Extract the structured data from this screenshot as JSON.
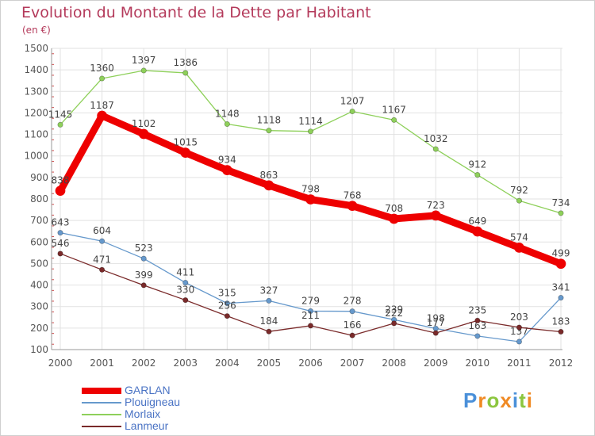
{
  "chart_data": {
    "type": "line",
    "title": "Evolution du Montant de la Dette par Habitant",
    "subtitle": "(en €)",
    "x": [
      "2000",
      "2001",
      "2002",
      "2003",
      "2004",
      "2005",
      "2006",
      "2007",
      "2008",
      "2009",
      "2010",
      "2011",
      "2012"
    ],
    "ylim": [
      100,
      1500
    ],
    "yticks": [
      100,
      200,
      300,
      400,
      500,
      600,
      700,
      800,
      900,
      1000,
      1100,
      1200,
      1300,
      1400,
      1500
    ],
    "grid": true,
    "legend_position": "bottom-left",
    "series": [
      {
        "name": "Morlaix",
        "color": "#8ed05a",
        "values": [
          1145,
          1360,
          1397,
          1386,
          1148,
          1118,
          1114,
          1207,
          1167,
          1032,
          912,
          792,
          734
        ]
      },
      {
        "name": "GARLAN",
        "color": "#ee0000",
        "values": [
          838,
          1187,
          1102,
          1015,
          934,
          863,
          798,
          768,
          708,
          723,
          649,
          574,
          499
        ]
      },
      {
        "name": "Plouigneau",
        "color": "#6699cc",
        "values": [
          643,
          604,
          523,
          411,
          315,
          327,
          279,
          278,
          239,
          198,
          163,
          137,
          341
        ]
      },
      {
        "name": "Lanmeur",
        "color": "#7a2a2a",
        "values": [
          546,
          471,
          399,
          330,
          256,
          184,
          211,
          166,
          222,
          177,
          235,
          203,
          183
        ]
      }
    ],
    "legend": [
      {
        "name": "GARLAN",
        "color": "#ee0000",
        "width": 8
      },
      {
        "name": "Plouigneau",
        "color": "#6699cc",
        "width": 2
      },
      {
        "name": "Morlaix",
        "color": "#8ed05a",
        "width": 2
      },
      {
        "name": "Lanmeur",
        "color": "#7a2a2a",
        "width": 2
      }
    ]
  },
  "logo": {
    "text": "Proxiti",
    "letter_colors": [
      "#4a90d9",
      "#f08a24",
      "#8cc63f",
      "#f08a24",
      "#4a90d9",
      "#8cc63f",
      "#f08a24"
    ]
  }
}
